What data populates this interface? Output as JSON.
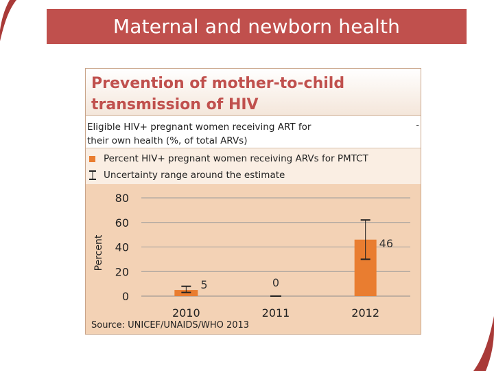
{
  "slide": {
    "title": "Maternal and newborn health",
    "accent_color": "#c0504d"
  },
  "panel": {
    "title": "Prevention of mother-to-child transmission of HIV",
    "subtitle_line1": "Eligible HIV+ pregnant women receiving ART for",
    "subtitle_line2": "their own health (%, of total ARVs)",
    "subtitle_marker": "-",
    "source": "Source: UNICEF/UNAIDS/WHO 2013"
  },
  "chart_data": {
    "type": "bar",
    "categories": [
      "2010",
      "2011",
      "2012"
    ],
    "series": [
      {
        "name": "Percent HIV+ pregnant women receiving ARVs for PMTCT",
        "values": [
          5,
          0,
          46
        ],
        "color": "#e97d30",
        "uncertainty_low": [
          3,
          0,
          30
        ],
        "uncertainty_high": [
          8,
          0,
          62
        ]
      }
    ],
    "uncertainty_label": "Uncertainty range around the estimate",
    "data_labels": [
      "5",
      "0",
      "46"
    ],
    "ylabel": "Percent",
    "xlabel": "",
    "ylim": [
      0,
      80
    ],
    "yticks": [
      "0",
      "20",
      "40",
      "60",
      "80"
    ],
    "grid": true,
    "legend_position": "top"
  }
}
